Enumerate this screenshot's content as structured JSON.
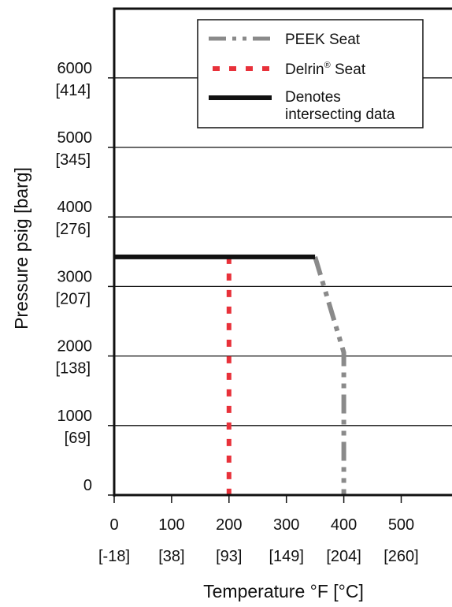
{
  "chart_data": {
    "type": "line",
    "xlabel": "Temperature °F [°C]",
    "ylabel": "Pressure psig [barg]",
    "xlim": [
      0,
      590
    ],
    "ylim": [
      0,
      6000
    ],
    "grid": "horizontal",
    "legend_placement": "top-right",
    "x_ticks": [
      {
        "value": 0,
        "label": "0",
        "sublabel": "[-18]"
      },
      {
        "value": 100,
        "label": "100",
        "sublabel": "[38]"
      },
      {
        "value": 200,
        "label": "200",
        "sublabel": "[93]"
      },
      {
        "value": 300,
        "label": "300",
        "sublabel": "[149]"
      },
      {
        "value": 400,
        "label": "400",
        "sublabel": "[204]"
      },
      {
        "value": 500,
        "label": "500",
        "sublabel": "[260]"
      }
    ],
    "y_ticks": [
      {
        "value": 0,
        "label": "0",
        "sublabel": ""
      },
      {
        "value": 1000,
        "label": "1000",
        "sublabel": "[69]"
      },
      {
        "value": 2000,
        "label": "2000",
        "sublabel": "[138]"
      },
      {
        "value": 3000,
        "label": "3000",
        "sublabel": "[207]"
      },
      {
        "value": 4000,
        "label": "4000",
        "sublabel": "[276]"
      },
      {
        "value": 5000,
        "label": "5000",
        "sublabel": "[345]"
      },
      {
        "value": 6000,
        "label": "6000",
        "sublabel": "[414]"
      }
    ],
    "series": [
      {
        "name": "PEEK Seat",
        "style": "dash-dot-dot",
        "color": "#8a8a8a",
        "points": [
          [
            350,
            3425
          ],
          [
            400,
            2050
          ],
          [
            400,
            0
          ]
        ]
      },
      {
        "name": "Delrin",
        "name_superscript": "®",
        "name_suffix": " Seat",
        "style": "dotted",
        "color": "#e8313a",
        "points": [
          [
            200,
            3425
          ],
          [
            200,
            0
          ]
        ]
      },
      {
        "name": "Denotes",
        "name_line2": "intersecting data",
        "style": "solid",
        "color": "#111111",
        "points": [
          [
            0,
            3425
          ],
          [
            350,
            3425
          ]
        ]
      }
    ]
  }
}
